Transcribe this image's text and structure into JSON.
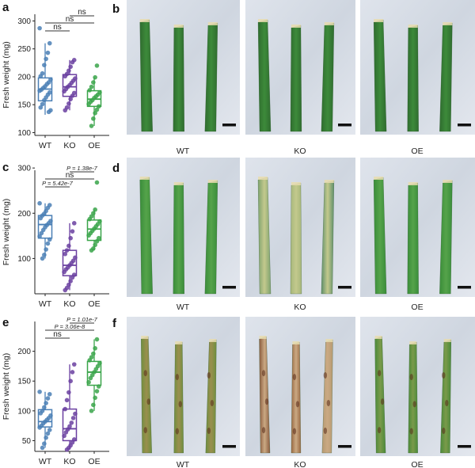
{
  "colors": {
    "WT": "#4a7fb5",
    "KO": "#6a3fa0",
    "OE": "#3aa54a"
  },
  "chart_data": [
    {
      "type": "box",
      "panel": "a",
      "ylabel": "Fresh weight (mg)",
      "ylim": [
        95,
        312
      ],
      "yticks": [
        100,
        150,
        200,
        250,
        300
      ],
      "categories": [
        "WT",
        "KO",
        "OE"
      ],
      "boxes": [
        {
          "name": "WT",
          "q1": 157,
          "median": 178,
          "q3": 198,
          "whisker_low": 132,
          "whisker_high": 260,
          "points": [
            287,
            260,
            243,
            232,
            221,
            206,
            201,
            195,
            190,
            187,
            183,
            180,
            177,
            175,
            172,
            168,
            163,
            158,
            151,
            145,
            140,
            137
          ]
        },
        {
          "name": "KO",
          "q1": 165,
          "median": 182,
          "q3": 204,
          "whisker_low": 140,
          "whisker_high": 230,
          "points": [
            230,
            226,
            218,
            211,
            205,
            201,
            197,
            193,
            189,
            185,
            182,
            178,
            174,
            171,
            166,
            160,
            152,
            145,
            140
          ]
        },
        {
          "name": "OE",
          "q1": 147,
          "median": 160,
          "q3": 175,
          "whisker_low": 112,
          "whisker_high": 199,
          "points": [
            220,
            199,
            190,
            182,
            176,
            172,
            168,
            165,
            162,
            158,
            155,
            151,
            147,
            141,
            135,
            125,
            112
          ]
        }
      ],
      "comparisons": [
        {
          "from": "WT",
          "to": "KO",
          "label": "ns"
        },
        {
          "from": "WT",
          "to": "OE",
          "label": "ns"
        },
        {
          "from": "KO",
          "to": "OE",
          "label": "ns"
        }
      ]
    },
    {
      "type": "box",
      "panel": "c",
      "ylabel": "Fresh weight (mg)",
      "ylim": [
        22,
        295
      ],
      "yticks": [
        100,
        200,
        300
      ],
      "categories": [
        "WT",
        "KO",
        "OE"
      ],
      "boxes": [
        {
          "name": "WT",
          "q1": 145,
          "median": 175,
          "q3": 195,
          "whisker_low": 100,
          "whisker_high": 222,
          "points": [
            222,
            218,
            212,
            205,
            199,
            195,
            189,
            183,
            178,
            174,
            169,
            163,
            156,
            149,
            142,
            133,
            120,
            108,
            100
          ]
        },
        {
          "name": "KO",
          "q1": 62,
          "median": 85,
          "q3": 118,
          "whisker_low": 30,
          "whisker_high": 178,
          "points": [
            178,
            160,
            145,
            128,
            118,
            110,
            102,
            95,
            90,
            85,
            80,
            76,
            70,
            64,
            58,
            50,
            42,
            35,
            30
          ]
        },
        {
          "name": "OE",
          "q1": 140,
          "median": 165,
          "q3": 185,
          "whisker_low": 118,
          "whisker_high": 208,
          "points": [
            268,
            208,
            200,
            193,
            187,
            182,
            176,
            171,
            166,
            161,
            156,
            151,
            145,
            138,
            130,
            122,
            118
          ]
        }
      ],
      "comparisons": [
        {
          "from": "WT",
          "to": "KO",
          "label": "P = 5.42e-7"
        },
        {
          "from": "WT",
          "to": "OE",
          "label": "ns"
        },
        {
          "from": "KO",
          "to": "OE",
          "label": "P = 1.38e-7"
        }
      ]
    },
    {
      "type": "box",
      "panel": "e",
      "ylabel": "Fresh weight (mg)",
      "ylim": [
        32,
        250
      ],
      "yticks": [
        50,
        100,
        150,
        200
      ],
      "categories": [
        "WT",
        "KO",
        "OE"
      ],
      "boxes": [
        {
          "name": "WT",
          "q1": 73,
          "median": 82,
          "q3": 102,
          "whisker_low": 38,
          "whisker_high": 132,
          "points": [
            132,
            128,
            121,
            113,
            106,
            100,
            96,
            92,
            88,
            85,
            82,
            79,
            75,
            72,
            68,
            62,
            55,
            45,
            38
          ]
        },
        {
          "name": "KO",
          "q1": 50,
          "median": 70,
          "q3": 103,
          "whisker_low": 35,
          "whisker_high": 178,
          "points": [
            178,
            165,
            150,
            131,
            118,
            103,
            95,
            88,
            80,
            74,
            69,
            64,
            58,
            52,
            47,
            42,
            38,
            35
          ]
        },
        {
          "name": "OE",
          "q1": 143,
          "median": 165,
          "q3": 183,
          "whisker_low": 100,
          "whisker_high": 220,
          "points": [
            220,
            205,
            196,
            190,
            185,
            180,
            175,
            170,
            165,
            160,
            155,
            148,
            141,
            133,
            122,
            110,
            100
          ]
        }
      ],
      "comparisons": [
        {
          "from": "WT",
          "to": "KO",
          "label": "ns"
        },
        {
          "from": "WT",
          "to": "OE",
          "label": "P = 3.06e-8"
        },
        {
          "from": "KO",
          "to": "OE",
          "label": "P = 1.01e-7"
        }
      ]
    }
  ],
  "photo_panels": [
    {
      "letter": "b",
      "labels": [
        "WT",
        "KO",
        "OE"
      ],
      "condition": "healthy"
    },
    {
      "letter": "d",
      "labels": [
        "WT",
        "KO",
        "OE"
      ],
      "condition": "chlorotic"
    },
    {
      "letter": "f",
      "labels": [
        "WT",
        "KO",
        "OE"
      ],
      "condition": "necrotic"
    }
  ]
}
